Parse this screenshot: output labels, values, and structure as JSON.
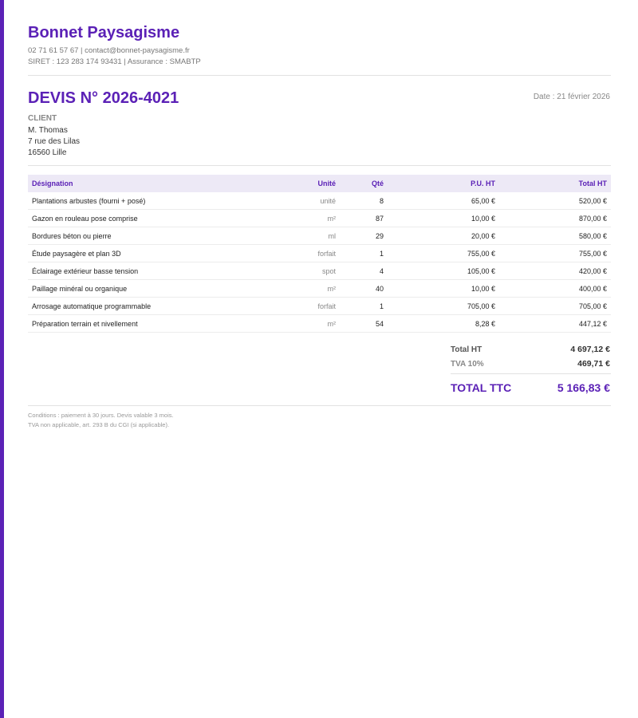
{
  "header": {
    "company": "Bonnet Paysagisme",
    "contact": "02 71 61 57 67  |  contact@bonnet-paysagisme.fr",
    "legal": "SIRET : 123 283 174 93431  |  Assurance : SMABTP"
  },
  "quote": {
    "title": "DEVIS N° 2026-4021",
    "date": "Date : 21 février 2026"
  },
  "client": {
    "label": "CLIENT",
    "lines": [
      "M. Thomas",
      "7 rue des Lilas",
      "16560 Lille"
    ]
  },
  "table": {
    "columns": [
      "Désignation",
      "Unité",
      "Qté",
      "P.U. HT",
      "Total HT"
    ],
    "rows": [
      [
        "Plantations arbustes (fourni + posé)",
        "unité",
        "8",
        "65,00 €",
        "520,00 €"
      ],
      [
        "Gazon en rouleau pose comprise",
        "m²",
        "87",
        "10,00 €",
        "870,00 €"
      ],
      [
        "Bordures béton ou pierre",
        "ml",
        "29",
        "20,00 €",
        "580,00 €"
      ],
      [
        "Étude paysagère et plan 3D",
        "forfait",
        "1",
        "755,00 €",
        "755,00 €"
      ],
      [
        "Éclairage extérieur basse tension",
        "spot",
        "4",
        "105,00 €",
        "420,00 €"
      ],
      [
        "Paillage minéral ou organique",
        "m²",
        "40",
        "10,00 €",
        "400,00 €"
      ],
      [
        "Arrosage automatique programmable",
        "forfait",
        "1",
        "705,00 €",
        "705,00 €"
      ],
      [
        "Préparation terrain et nivellement",
        "m²",
        "54",
        "8,28 €",
        "447,12 €"
      ]
    ]
  },
  "totals": {
    "ht_label": "Total HT",
    "ht": "4 697,12 €",
    "tva_label": "TVA 10%",
    "tva": "469,71 €",
    "ttc_label": "TOTAL TTC",
    "ttc": "5 166,83 €"
  },
  "conditions": [
    "Conditions : paiement à 30 jours. Devis valable 3 mois.",
    "TVA non applicable, art. 293 B du CGI (si applicable)."
  ]
}
